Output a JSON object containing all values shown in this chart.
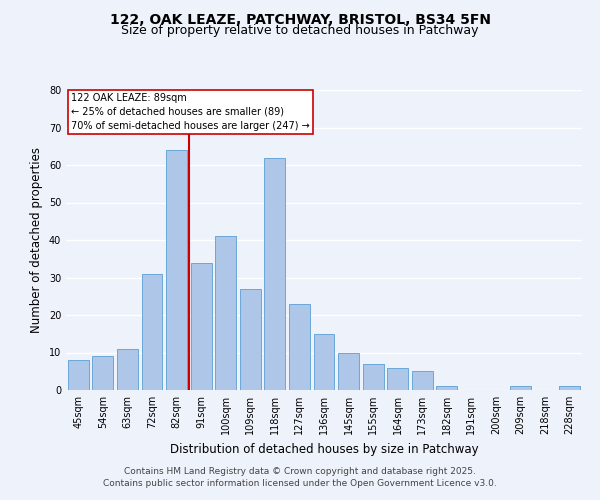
{
  "title_line1": "122, OAK LEAZE, PATCHWAY, BRISTOL, BS34 5FN",
  "title_line2": "Size of property relative to detached houses in Patchway",
  "xlabel": "Distribution of detached houses by size in Patchway",
  "ylabel": "Number of detached properties",
  "bar_labels": [
    "45sqm",
    "54sqm",
    "63sqm",
    "72sqm",
    "82sqm",
    "91sqm",
    "100sqm",
    "109sqm",
    "118sqm",
    "127sqm",
    "136sqm",
    "145sqm",
    "155sqm",
    "164sqm",
    "173sqm",
    "182sqm",
    "191sqm",
    "200sqm",
    "209sqm",
    "218sqm",
    "228sqm"
  ],
  "bar_heights": [
    8,
    9,
    11,
    31,
    64,
    34,
    41,
    27,
    62,
    23,
    15,
    10,
    7,
    6,
    5,
    1,
    0,
    0,
    1,
    0,
    1
  ],
  "bar_color": "#aec6e8",
  "bar_edge_color": "#5a9fd4",
  "vline_color": "#cc0000",
  "annotation_text": "122 OAK LEAZE: 89sqm\n← 25% of detached houses are smaller (89)\n70% of semi-detached houses are larger (247) →",
  "annotation_box_color": "#ffffff",
  "annotation_box_edge": "#cc0000",
  "ylim": [
    0,
    80
  ],
  "yticks": [
    0,
    10,
    20,
    30,
    40,
    50,
    60,
    70,
    80
  ],
  "footer_line1": "Contains HM Land Registry data © Crown copyright and database right 2025.",
  "footer_line2": "Contains public sector information licensed under the Open Government Licence v3.0.",
  "bg_color": "#eef2fb",
  "grid_color": "#ffffff",
  "title_fontsize": 10,
  "subtitle_fontsize": 9,
  "axis_label_fontsize": 8.5,
  "tick_fontsize": 7,
  "footer_fontsize": 6.5
}
